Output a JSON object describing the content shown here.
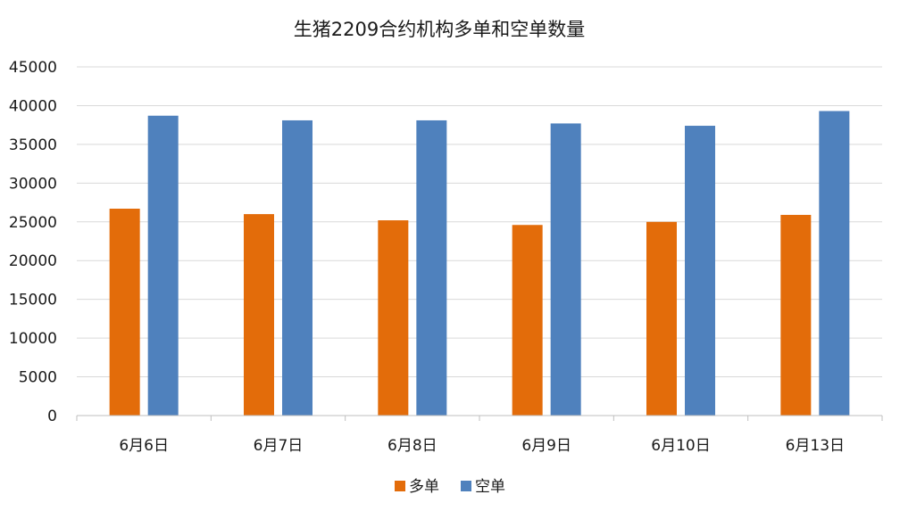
{
  "chart_data": {
    "type": "bar",
    "title": "生猪2209合约机构多单和空单数量",
    "categories": [
      "6月6日",
      "6月7日",
      "6月8日",
      "6月9日",
      "6月10日",
      "6月13日"
    ],
    "series": [
      {
        "name": "多单",
        "color": "#E36C0A",
        "values": [
          26700,
          26000,
          25200,
          24600,
          25000,
          25900
        ]
      },
      {
        "name": "空单",
        "color": "#4F81BD",
        "values": [
          38700,
          38100,
          38100,
          37700,
          37400,
          39300
        ]
      }
    ],
    "ylim": [
      0,
      45000
    ],
    "yticks": [
      0,
      5000,
      10000,
      15000,
      20000,
      25000,
      30000,
      35000,
      40000,
      45000
    ],
    "grid": true,
    "legend_position": "bottom-center",
    "xlabel": "",
    "ylabel": ""
  }
}
